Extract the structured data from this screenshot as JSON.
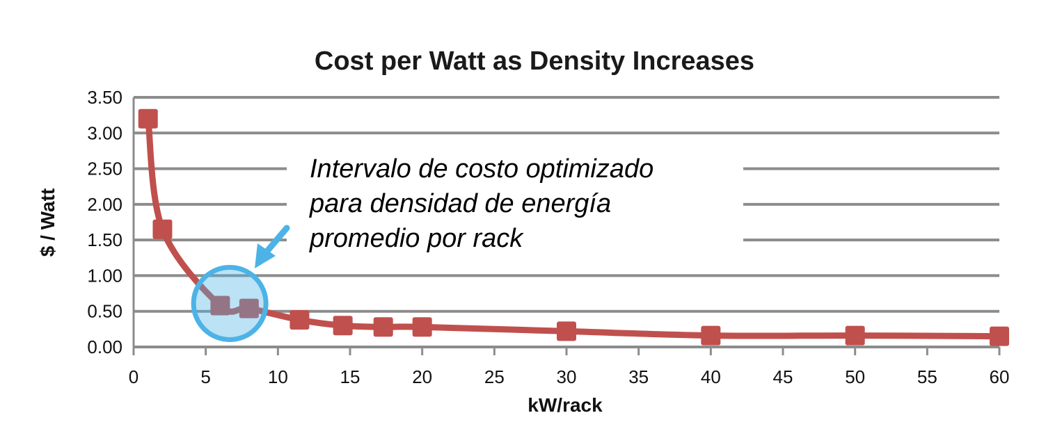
{
  "chart_data": {
    "type": "line",
    "title": "Cost per Watt as Density Increases",
    "xlabel": "kW/rack",
    "ylabel": "$ / Watt",
    "xlim": [
      0,
      60
    ],
    "ylim": [
      0,
      3.5
    ],
    "xticks": [
      "0",
      "5",
      "10",
      "15",
      "20",
      "25",
      "30",
      "35",
      "40",
      "45",
      "50",
      "55",
      "60"
    ],
    "yticks": [
      "0.00",
      "0.50",
      "1.00",
      "1.50",
      "2.00",
      "2.50",
      "3.00",
      "3.50"
    ],
    "grid": true,
    "series": [
      {
        "color": "#c0504d",
        "x": [
          1,
          2,
          6,
          8,
          11.5,
          14.5,
          17.3,
          20,
          30,
          40,
          50,
          60
        ],
        "y": [
          3.2,
          1.65,
          0.58,
          0.54,
          0.38,
          0.3,
          0.28,
          0.28,
          0.22,
          0.16,
          0.16,
          0.15
        ]
      }
    ],
    "annotations": {
      "text_lines": [
        "Intervalo de costo optimizado",
        "para densidad de energía",
        "promedio por rack"
      ],
      "highlight": {
        "x_center": 7,
        "y_center": 0.6
      },
      "highlight_color": "#4db3e6"
    }
  }
}
